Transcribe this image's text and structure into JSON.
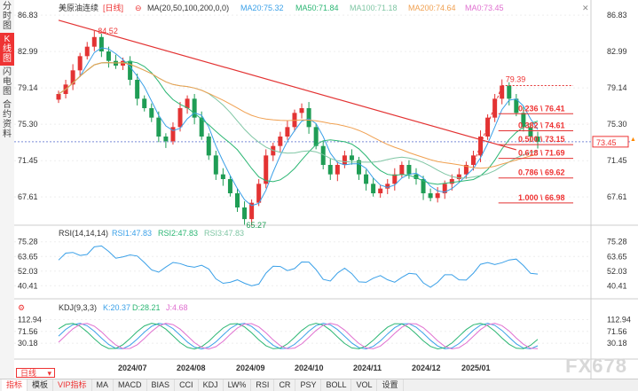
{
  "sidebar": {
    "items": [
      {
        "label": "分时图",
        "active": false
      },
      {
        "label": "K线图",
        "active": true
      },
      {
        "label": "闪电图",
        "active": false
      },
      {
        "label": "合约资料",
        "active": false
      }
    ]
  },
  "header": {
    "symbol": "美原油连续",
    "period": "[日线]",
    "ma_label": "MA(20,50,100,200,0,0)",
    "ma20": "MA20:75.32",
    "ma50": "MA50:71.84",
    "ma100": "MA100:71.18",
    "ma200": "MA200:74.64",
    "ma0": "MA0:73.45"
  },
  "colors": {
    "up": "#e33333",
    "down": "#1f9d55",
    "ma20": "#3aa0e8",
    "ma50": "#2bb673",
    "ma100": "#7fc6a4",
    "ma200": "#f0a050",
    "ma0": "#e070d0",
    "trend": "#e33333",
    "fib": "#e33333"
  },
  "price_axis": {
    "ticks": [
      "86.83",
      "82.99",
      "79.14",
      "75.30",
      "71.45",
      "67.61"
    ],
    "current": "73.45"
  },
  "annotations": {
    "high": "84.52",
    "low": "65.27",
    "peak": "79.39"
  },
  "fib_levels": [
    {
      "label": "0.236 \\ 76.41",
      "value": 76.41
    },
    {
      "label": "0.382 \\ 74.61",
      "value": 74.61
    },
    {
      "label": "0.500 \\ 73.15",
      "value": 73.15
    },
    {
      "label": "0.618 \\ 71.69",
      "value": 71.69
    },
    {
      "label": "0.786 \\ 69.62",
      "value": 69.62
    },
    {
      "label": "1.000 \\ 66.98",
      "value": 66.98
    }
  ],
  "rsi": {
    "label": "RSI(14,14,14)",
    "rsi1": "RSI1:47.83",
    "rsi2": "RSI2:47.83",
    "rsi3": "RSI3:47.83",
    "ticks": [
      "75.28",
      "63.65",
      "52.03",
      "40.41"
    ]
  },
  "kdj": {
    "label": "KDJ(9,3,3)",
    "k": "K:20.37",
    "d": "D:28.21",
    "j": "J:4.68",
    "ticks": [
      "112.94",
      "71.56",
      "30.18"
    ]
  },
  "x_axis": {
    "labels": [
      "2024/07",
      "2024/08",
      "2024/09",
      "2024/10",
      "2024/11",
      "2024/12",
      "2025/01"
    ]
  },
  "bottom_bar": {
    "period_select": "日线",
    "tabs": [
      "指标",
      "模板",
      "VIP指标",
      "MA",
      "MACD",
      "BIAS",
      "CCI",
      "KDJ",
      "LW%",
      "RSI",
      "CR",
      "PSY",
      "BOLL",
      "VOL",
      "设置"
    ]
  },
  "watermark": "FX678",
  "chart_data": {
    "type": "candlestick",
    "ylim": [
      65.0,
      87.5
    ],
    "close_path": [
      78.5,
      79.5,
      81,
      82.5,
      83.5,
      84.52,
      83,
      82,
      81.5,
      82,
      80,
      78,
      77,
      76,
      74,
      73.5,
      75,
      77,
      78,
      76,
      74,
      72,
      70,
      69.5,
      68,
      66.5,
      65.27,
      67,
      69,
      72,
      73,
      74,
      75,
      76.5,
      77,
      75,
      73,
      71,
      70,
      71,
      72,
      71.5,
      70,
      69,
      68,
      68.5,
      69,
      70,
      71,
      70,
      69.5,
      68,
      67.5,
      68,
      69,
      69.5,
      70,
      71,
      72,
      74,
      76,
      78,
      79.39,
      78,
      76.5,
      75,
      74,
      73.45
    ]
  }
}
